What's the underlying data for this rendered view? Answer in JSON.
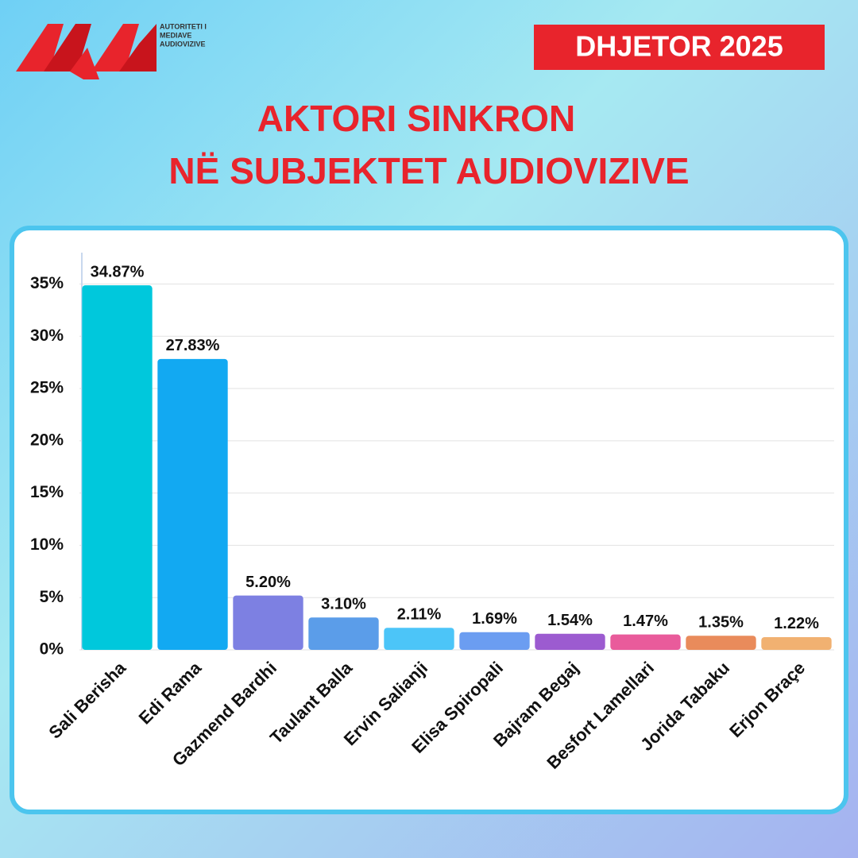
{
  "header": {
    "logo_lines": [
      "AUTORITETI I",
      "MEDIAVE",
      "AUDIOVIZIVE"
    ],
    "badge": "DHJETOR 2025"
  },
  "chart_data": {
    "type": "bar",
    "title": [
      "AKTORI SINKRON",
      "NË SUBJEKTET AUDIOVIZIVE"
    ],
    "categories": [
      "Sali Berisha",
      "Edi Rama",
      "Gazmend Bardhi",
      "Taulant Balla",
      "Ervin Salianji",
      "Elisa Spiropali",
      "Bajram Begaj",
      "Besfort Lamellari",
      "Jorida Tabaku",
      "Erjon Braçe"
    ],
    "values": [
      34.87,
      27.83,
      5.2,
      3.1,
      2.11,
      1.69,
      1.54,
      1.47,
      1.35,
      1.22
    ],
    "value_labels": [
      "34.87%",
      "27.83%",
      "5.20%",
      "3.10%",
      "2.11%",
      "1.69%",
      "1.54%",
      "1.47%",
      "1.35%",
      "1.22%"
    ],
    "colors": [
      "#00c8dc",
      "#12a9f2",
      "#7d80e2",
      "#5b9de9",
      "#4cc5f8",
      "#6b9df1",
      "#9c5bd0",
      "#e95b9b",
      "#e98b5b",
      "#f1b171"
    ],
    "ylim": [
      0,
      38
    ],
    "yticks": [
      {
        "value": 0,
        "label": "0%"
      },
      {
        "value": 5,
        "label": "5%"
      },
      {
        "value": 10,
        "label": "10%"
      },
      {
        "value": 15,
        "label": "15%"
      },
      {
        "value": 20,
        "label": "20%"
      },
      {
        "value": 25,
        "label": "25%"
      },
      {
        "value": 30,
        "label": "30%"
      },
      {
        "value": 35,
        "label": "35%"
      }
    ],
    "grid": true
  }
}
